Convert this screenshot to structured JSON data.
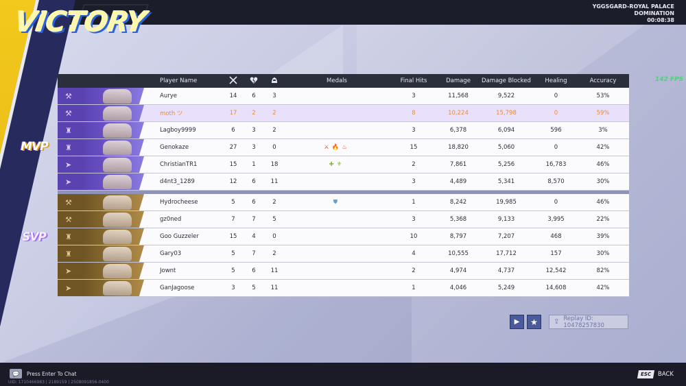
{
  "header": {
    "title": "VICTORY",
    "map_name": "YGGSGARD-ROYAL PALACE",
    "mode": "DOMINATION",
    "time": "00:08:38"
  },
  "fps": "142 FPS",
  "badges": {
    "mvp": "MVP",
    "svp": "SVP"
  },
  "columns": {
    "player_name": "Player Name",
    "kills_icon": "crossed-swords-icon",
    "deaths_icon": "broken-heart-icon",
    "assists_icon": "assist-helmet-icon",
    "medals": "Medals",
    "final_hits": "Final Hits",
    "damage": "Damage",
    "damage_blocked": "Damage Blocked",
    "healing": "Healing",
    "accuracy": "Accuracy"
  },
  "team1": [
    {
      "name": "Aurye",
      "k": "14",
      "d": "6",
      "a": "3",
      "medals": "",
      "fh": "3",
      "dmg": "11,568",
      "db": "9,522",
      "heal": "0",
      "acc": "53%",
      "role": "vanguard"
    },
    {
      "name": "moth ツ",
      "k": "17",
      "d": "2",
      "a": "2",
      "medals": "",
      "fh": "8",
      "dmg": "10,224",
      "db": "15,798",
      "heal": "0",
      "acc": "59%",
      "role": "vanguard",
      "highlight": true
    },
    {
      "name": "Lagboy9999",
      "k": "6",
      "d": "3",
      "a": "2",
      "medals": "",
      "fh": "3",
      "dmg": "6,378",
      "db": "6,094",
      "heal": "596",
      "acc": "3%",
      "role": "duelist"
    },
    {
      "name": "Genokaze",
      "k": "27",
      "d": "3",
      "a": "0",
      "medals": "⚔🔥♨",
      "fh": "15",
      "dmg": "18,820",
      "db": "5,060",
      "heal": "0",
      "acc": "42%",
      "role": "duelist"
    },
    {
      "name": "ChristianTR1",
      "k": "15",
      "d": "1",
      "a": "18",
      "medals": "✚⚜",
      "fh": "2",
      "dmg": "7,861",
      "db": "5,256",
      "heal": "16,783",
      "acc": "46%",
      "role": "strategist"
    },
    {
      "name": "d4nt3_1289",
      "k": "12",
      "d": "6",
      "a": "11",
      "medals": "",
      "fh": "3",
      "dmg": "4,489",
      "db": "5,341",
      "heal": "8,570",
      "acc": "30%",
      "role": "strategist"
    }
  ],
  "team2": [
    {
      "name": "Hydrocheese",
      "k": "5",
      "d": "6",
      "a": "2",
      "medals": "⛊",
      "fh": "1",
      "dmg": "8,242",
      "db": "19,985",
      "heal": "0",
      "acc": "46%",
      "role": "vanguard"
    },
    {
      "name": "gz0ned",
      "k": "7",
      "d": "7",
      "a": "5",
      "medals": "",
      "fh": "3",
      "dmg": "5,368",
      "db": "9,133",
      "heal": "3,995",
      "acc": "22%",
      "role": "vanguard"
    },
    {
      "name": "Goo Guzzeler",
      "k": "15",
      "d": "4",
      "a": "0",
      "medals": "",
      "fh": "10",
      "dmg": "8,797",
      "db": "7,207",
      "heal": "468",
      "acc": "39%",
      "role": "duelist"
    },
    {
      "name": "Gary03",
      "k": "5",
      "d": "7",
      "a": "2",
      "medals": "",
      "fh": "4",
      "dmg": "10,555",
      "db": "17,712",
      "heal": "157",
      "acc": "30%",
      "role": "duelist"
    },
    {
      "name": "Jownt",
      "k": "5",
      "d": "6",
      "a": "11",
      "medals": "",
      "fh": "2",
      "dmg": "4,974",
      "db": "4,737",
      "heal": "12,542",
      "acc": "82%",
      "role": "strategist"
    },
    {
      "name": "GanJagoose",
      "k": "3",
      "d": "5",
      "a": "11",
      "medals": "",
      "fh": "1",
      "dmg": "4,046",
      "db": "5,249",
      "heal": "14,608",
      "acc": "42%",
      "role": "strategist"
    }
  ],
  "controls": {
    "play_icon": "play-icon",
    "star_icon": "star-icon",
    "replay_label": "Replay ID: 10478257830"
  },
  "footer": {
    "chat": "Press Enter To Chat",
    "uid": "UID: 1710466983 | 2189159 | 2508091856-0400",
    "esc": "ESC",
    "back": "BACK"
  }
}
